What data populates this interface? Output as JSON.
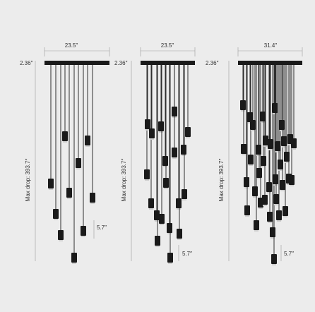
{
  "colors": {
    "background": "#ececec",
    "fixture": "#1a1a1a",
    "dimension_line": "#9a9a9a",
    "text": "#333333"
  },
  "fixtures": [
    {
      "width_label": "23.5″",
      "canopy_height_label": "2.36″",
      "max_drop_label": "Max drop: 393.7″",
      "pendant_height_label": "5.7″",
      "pendant_count": 11
    },
    {
      "width_label": "23.5″",
      "canopy_height_label": "2.36″",
      "max_drop_label": "Max drop: 393.7″",
      "pendant_height_label": "5.7″",
      "pendant_count": 19
    },
    {
      "width_label": "31.4″",
      "canopy_height_label": "2.36″",
      "max_drop_label": "Max drop: 393.7″",
      "pendant_height_label": "5.7″",
      "pendant_count": 36
    }
  ]
}
